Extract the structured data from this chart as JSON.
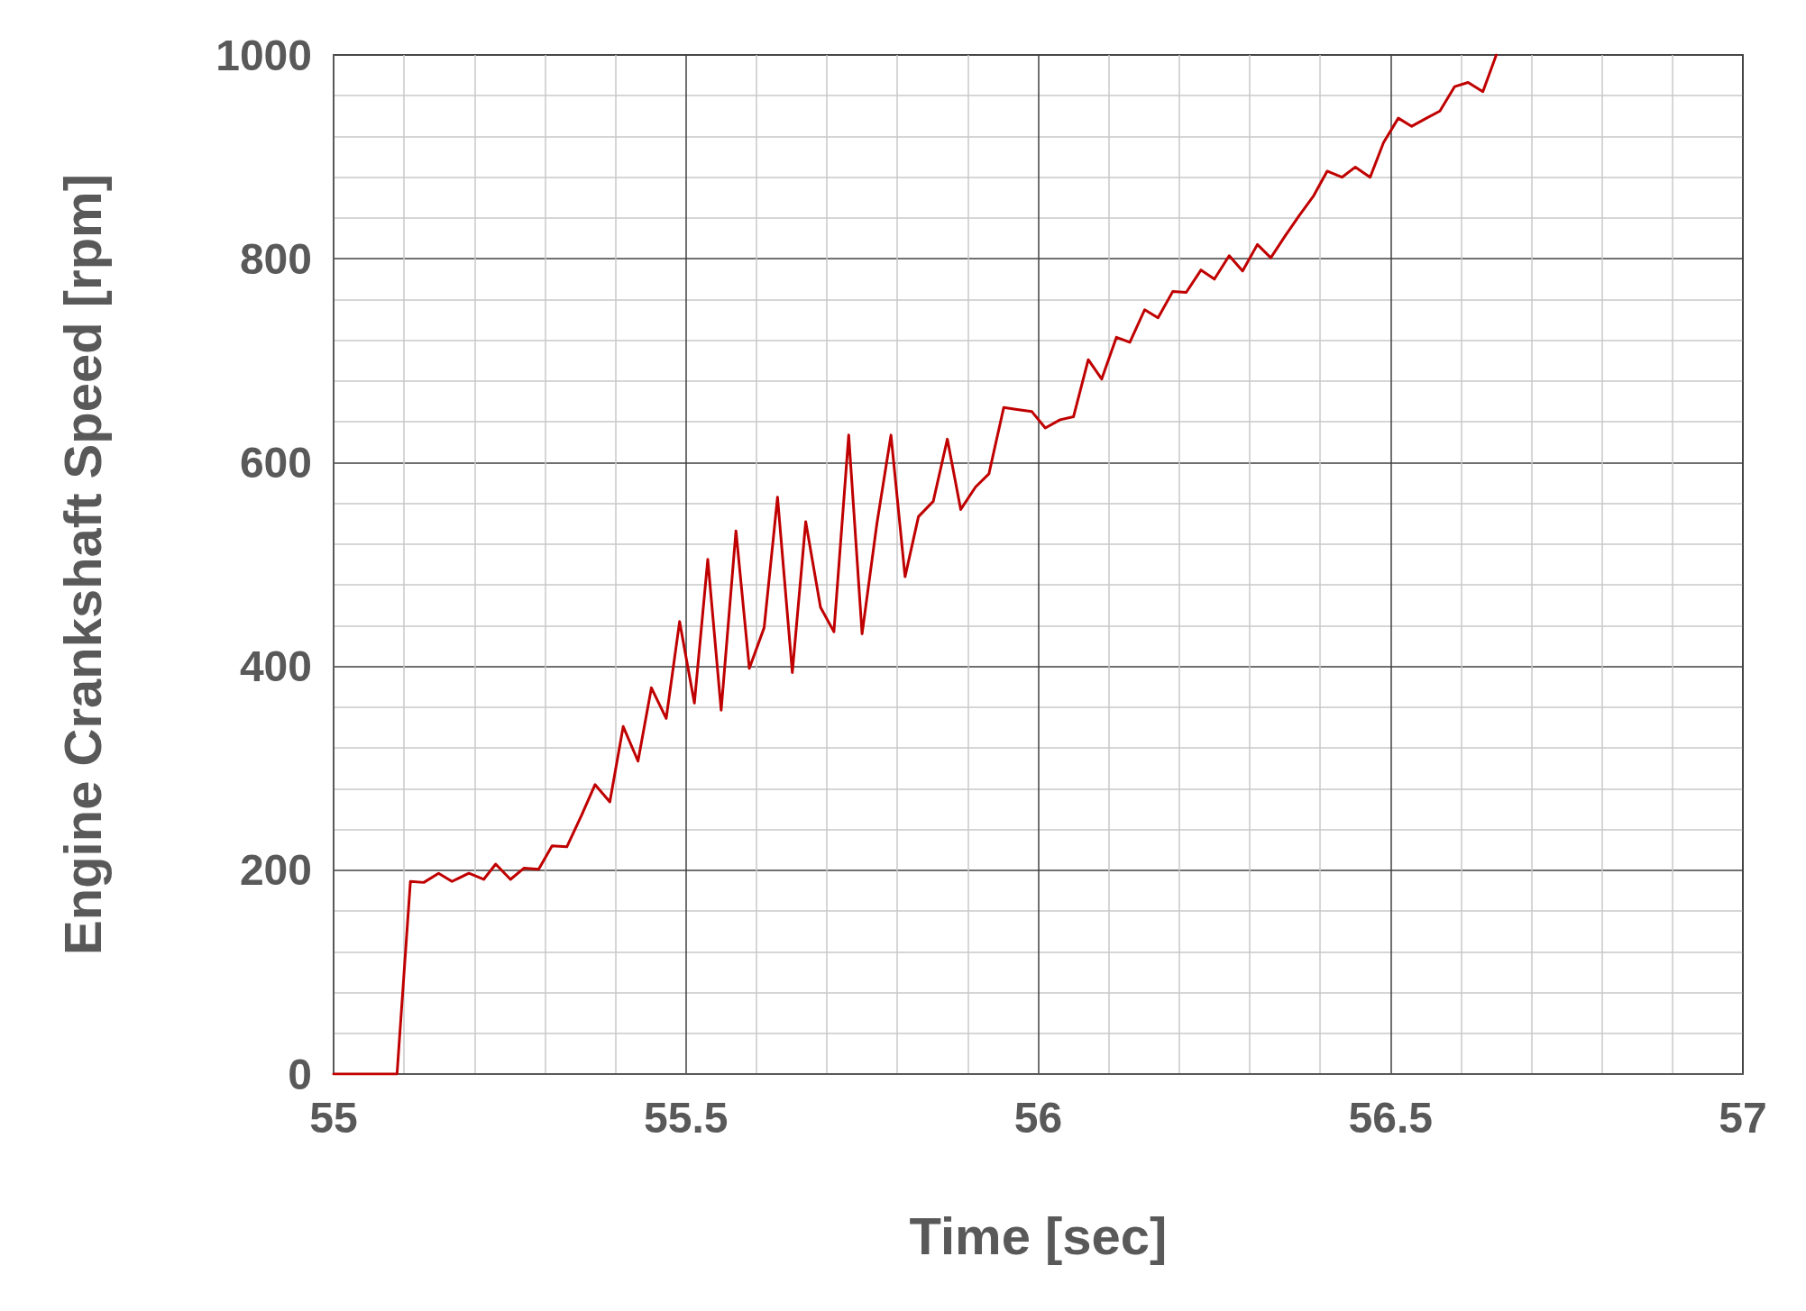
{
  "chart_data": {
    "type": "line",
    "xlabel": "Time [sec]",
    "ylabel": "Engine Crankshaft Speed [rpm]",
    "xlim": [
      55,
      57
    ],
    "xticks": [
      55,
      55.5,
      56,
      56.5,
      57
    ],
    "ylim": [
      0,
      1000
    ],
    "yticks": [
      0,
      200,
      400,
      600,
      800,
      1000
    ],
    "grid": true,
    "marker": "none",
    "line_style": "solid",
    "series": [
      {
        "color": "#c00000",
        "x": [
          55,
          55.09,
          55.109,
          55.128,
          55.149,
          55.168,
          55.192,
          55.213,
          55.23,
          55.251,
          55.27,
          55.291,
          55.31,
          55.331,
          55.352,
          55.371,
          55.392,
          55.411,
          55.432,
          55.451,
          55.472,
          55.491,
          55.512,
          55.531,
          55.55,
          55.571,
          55.59,
          55.611,
          55.63,
          55.651,
          55.67,
          55.691,
          55.71,
          55.731,
          55.75,
          55.771,
          55.791,
          55.811,
          55.83,
          55.851,
          55.871,
          55.89,
          55.911,
          55.93,
          55.951,
          55.97,
          55.991,
          56.01,
          56.031,
          56.05,
          56.071,
          56.09,
          56.111,
          56.13,
          56.151,
          56.17,
          56.191,
          56.21,
          56.231,
          56.25,
          56.271,
          56.29,
          56.311,
          56.33,
          56.351,
          56.37,
          56.391,
          56.41,
          56.431,
          56.45,
          56.471,
          56.49,
          56.511,
          56.53,
          56.551,
          56.57,
          56.591,
          56.61,
          56.631,
          56.65
        ],
        "values": [
          0,
          0,
          189,
          188,
          197,
          189,
          197,
          191,
          206,
          191,
          202,
          201,
          224,
          223,
          254,
          284,
          267,
          341,
          307,
          379,
          349,
          444,
          364,
          505,
          357,
          533,
          398,
          438,
          566,
          394,
          542,
          458,
          434,
          627,
          432,
          540,
          627,
          488,
          547,
          562,
          623,
          554,
          576,
          589,
          654,
          652,
          650,
          634,
          642,
          645,
          701,
          682,
          723,
          718,
          750,
          742,
          768,
          767,
          789,
          780,
          803,
          788,
          814,
          801,
          823,
          842,
          862,
          886,
          880,
          890,
          880,
          914,
          938,
          930,
          938,
          945,
          969,
          973,
          964,
          1000
        ]
      }
    ]
  }
}
